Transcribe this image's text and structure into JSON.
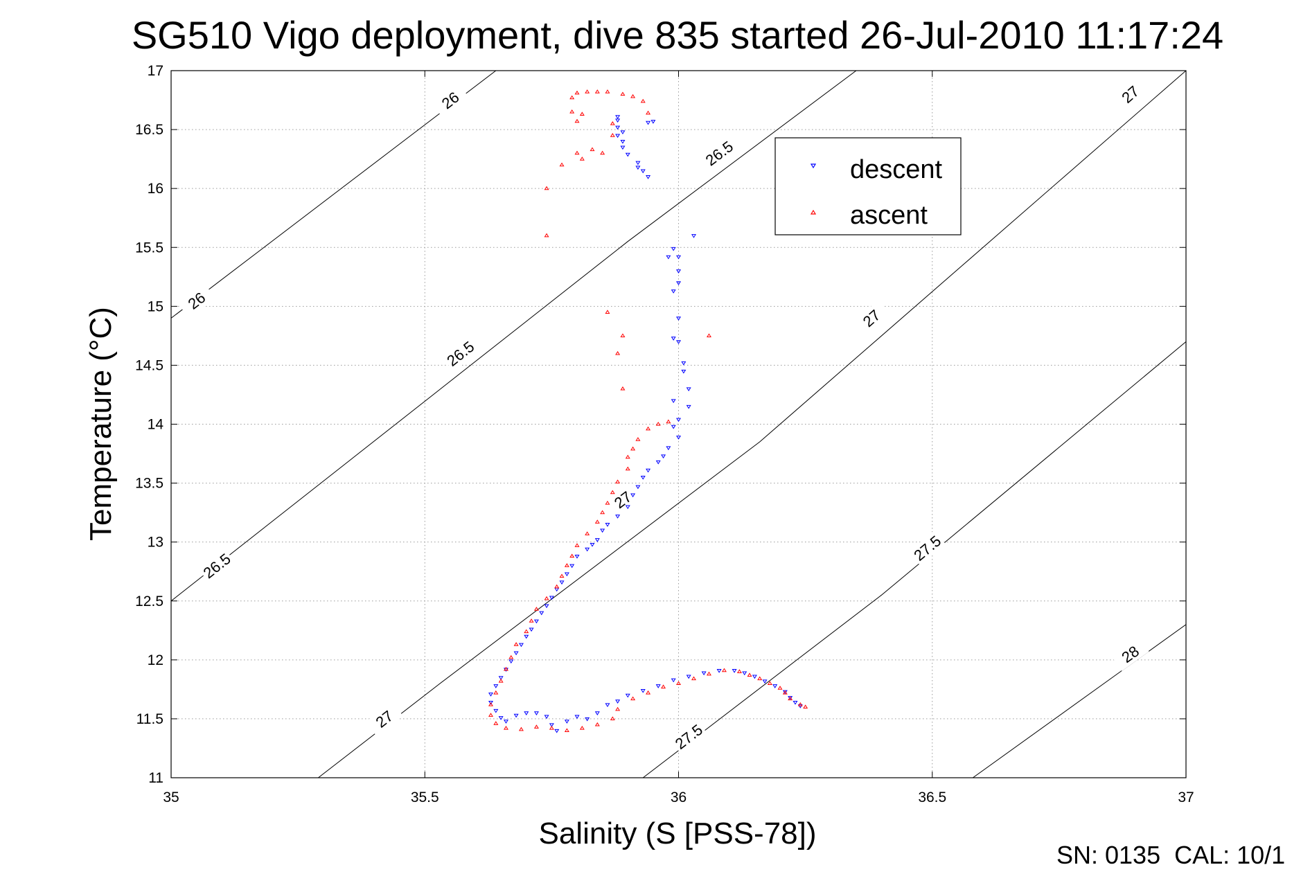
{
  "chart_data": {
    "type": "scatter",
    "title": "SG510 Vigo deployment, dive 835 started 26-Jul-2010 11:17:24",
    "xlabel": "Salinity (S [PSS-78])",
    "ylabel": "Temperature (°C)",
    "xlim": [
      35,
      37
    ],
    "ylim": [
      11,
      17
    ],
    "xticks": [
      35,
      35.5,
      36,
      36.5,
      37
    ],
    "xtick_labels": [
      "35",
      "35.5",
      "36",
      "36.5",
      "37"
    ],
    "yticks": [
      11,
      11.5,
      12,
      12.5,
      13,
      13.5,
      14,
      14.5,
      15,
      15.5,
      16,
      16.5,
      17
    ],
    "ytick_labels": [
      "11",
      "11.5",
      "12",
      "12.5",
      "13",
      "13.5",
      "14",
      "14.5",
      "15",
      "15.5",
      "16",
      "16.5",
      "17"
    ],
    "grid": true,
    "legend_position": "top-right",
    "footer": "SN: 0135  CAL: 10/1",
    "isopycnals": [
      {
        "points": [
          [
            35,
            14.9
          ],
          [
            35.64,
            17
          ]
        ],
        "labels": [
          {
            "text": "26",
            "s": 35.05,
            "t": 15.05
          },
          {
            "text": "26",
            "s": 35.55,
            "t": 16.75
          }
        ]
      },
      {
        "points": [
          [
            35,
            12.5
          ],
          [
            35.9,
            15.55
          ],
          [
            36.35,
            17
          ]
        ],
        "labels": [
          {
            "text": "26.5",
            "s": 35.09,
            "t": 12.8
          },
          {
            "text": "26.5",
            "s": 35.57,
            "t": 14.6
          },
          {
            "text": "26.5",
            "s": 36.08,
            "t": 16.3
          }
        ]
      },
      {
        "points": [
          [
            35.29,
            11
          ],
          [
            35.53,
            11.8
          ],
          [
            36.16,
            13.85
          ],
          [
            37,
            17
          ]
        ],
        "labels": [
          {
            "text": "27",
            "s": 35.42,
            "t": 11.5
          },
          {
            "text": "27",
            "s": 35.89,
            "t": 13.36
          },
          {
            "text": "27",
            "s": 36.38,
            "t": 14.9
          },
          {
            "text": "27",
            "s": 36.89,
            "t": 16.8
          }
        ]
      },
      {
        "points": [
          [
            35.93,
            11
          ],
          [
            36.4,
            12.55
          ],
          [
            37,
            14.7
          ]
        ],
        "labels": [
          {
            "text": "27.5",
            "s": 36.02,
            "t": 11.35
          },
          {
            "text": "27.5",
            "s": 36.49,
            "t": 12.95
          }
        ]
      },
      {
        "points": [
          [
            36.58,
            11
          ],
          [
            37,
            12.3
          ]
        ],
        "labels": [
          {
            "text": "28",
            "s": 36.89,
            "t": 12.05
          }
        ]
      }
    ],
    "series": [
      {
        "name": "descent",
        "color": "#0000ff",
        "marker": "triangle-down",
        "points": [
          [
            35.88,
            16.61
          ],
          [
            35.88,
            16.58
          ],
          [
            35.95,
            16.57
          ],
          [
            35.94,
            16.56
          ],
          [
            35.88,
            16.52
          ],
          [
            35.89,
            16.48
          ],
          [
            35.88,
            16.45
          ],
          [
            35.89,
            16.4
          ],
          [
            35.89,
            16.35
          ],
          [
            35.9,
            16.29
          ],
          [
            35.92,
            16.22
          ],
          [
            35.92,
            16.18
          ],
          [
            35.93,
            16.15
          ],
          [
            35.94,
            16.1
          ],
          [
            36.03,
            15.6
          ],
          [
            35.99,
            15.49
          ],
          [
            35.98,
            15.42
          ],
          [
            36.0,
            15.42
          ],
          [
            36.0,
            15.3
          ],
          [
            36.0,
            15.2
          ],
          [
            35.99,
            15.13
          ],
          [
            36.0,
            14.9
          ],
          [
            35.99,
            14.73
          ],
          [
            36.0,
            14.7
          ],
          [
            36.01,
            14.52
          ],
          [
            36.01,
            14.45
          ],
          [
            36.02,
            14.3
          ],
          [
            35.99,
            14.2
          ],
          [
            36.02,
            14.15
          ],
          [
            36.0,
            14.04
          ],
          [
            35.99,
            13.98
          ],
          [
            36.0,
            13.89
          ],
          [
            35.98,
            13.8
          ],
          [
            35.97,
            13.73
          ],
          [
            35.96,
            13.68
          ],
          [
            35.94,
            13.61
          ],
          [
            35.93,
            13.55
          ],
          [
            35.92,
            13.47
          ],
          [
            35.91,
            13.4
          ],
          [
            35.9,
            13.3
          ],
          [
            35.88,
            13.22
          ],
          [
            35.86,
            13.15
          ],
          [
            35.85,
            13.1
          ],
          [
            35.84,
            13.02
          ],
          [
            35.83,
            12.98
          ],
          [
            35.82,
            12.94
          ],
          [
            35.8,
            12.88
          ],
          [
            35.79,
            12.8
          ],
          [
            35.78,
            12.73
          ],
          [
            35.77,
            12.66
          ],
          [
            35.76,
            12.6
          ],
          [
            35.75,
            12.53
          ],
          [
            35.74,
            12.46
          ],
          [
            35.73,
            12.4
          ],
          [
            35.72,
            12.33
          ],
          [
            35.71,
            12.26
          ],
          [
            35.7,
            12.2
          ],
          [
            35.69,
            12.13
          ],
          [
            35.68,
            12.06
          ],
          [
            35.67,
            11.99
          ],
          [
            35.66,
            11.92
          ],
          [
            35.65,
            11.85
          ],
          [
            35.64,
            11.78
          ],
          [
            35.63,
            11.71
          ],
          [
            35.63,
            11.64
          ],
          [
            35.64,
            11.57
          ],
          [
            35.65,
            11.51
          ],
          [
            35.66,
            11.48
          ],
          [
            35.68,
            11.53
          ],
          [
            35.7,
            11.55
          ],
          [
            35.72,
            11.55
          ],
          [
            35.74,
            11.52
          ],
          [
            35.75,
            11.45
          ],
          [
            35.76,
            11.4
          ],
          [
            35.78,
            11.48
          ],
          [
            35.8,
            11.52
          ],
          [
            35.82,
            11.5
          ],
          [
            35.84,
            11.55
          ],
          [
            35.86,
            11.62
          ],
          [
            35.88,
            11.65
          ],
          [
            35.9,
            11.7
          ],
          [
            35.93,
            11.74
          ],
          [
            35.96,
            11.78
          ],
          [
            35.99,
            11.83
          ],
          [
            36.02,
            11.86
          ],
          [
            36.05,
            11.89
          ],
          [
            36.08,
            11.91
          ],
          [
            36.11,
            11.91
          ],
          [
            36.13,
            11.89
          ],
          [
            36.15,
            11.86
          ],
          [
            36.17,
            11.82
          ],
          [
            36.19,
            11.78
          ],
          [
            36.21,
            11.73
          ],
          [
            36.22,
            11.68
          ],
          [
            36.23,
            11.64
          ],
          [
            36.24,
            11.61
          ]
        ]
      },
      {
        "name": "ascent",
        "color": "#ff0000",
        "marker": "triangle-up",
        "points": [
          [
            35.8,
            16.81
          ],
          [
            35.82,
            16.82
          ],
          [
            35.84,
            16.82
          ],
          [
            35.86,
            16.82
          ],
          [
            35.79,
            16.77
          ],
          [
            35.89,
            16.8
          ],
          [
            35.91,
            16.78
          ],
          [
            35.93,
            16.74
          ],
          [
            35.94,
            16.64
          ],
          [
            35.79,
            16.65
          ],
          [
            35.81,
            16.63
          ],
          [
            35.8,
            16.57
          ],
          [
            35.87,
            16.55
          ],
          [
            35.87,
            16.45
          ],
          [
            35.83,
            16.33
          ],
          [
            35.8,
            16.3
          ],
          [
            35.85,
            16.3
          ],
          [
            35.81,
            16.25
          ],
          [
            35.77,
            16.2
          ],
          [
            35.74,
            16.0
          ],
          [
            35.74,
            15.6
          ],
          [
            35.86,
            14.95
          ],
          [
            35.89,
            14.75
          ],
          [
            35.88,
            14.6
          ],
          [
            35.89,
            14.3
          ],
          [
            36.06,
            14.75
          ],
          [
            35.98,
            14.02
          ],
          [
            35.96,
            14.0
          ],
          [
            35.94,
            13.96
          ],
          [
            35.92,
            13.87
          ],
          [
            35.91,
            13.79
          ],
          [
            35.9,
            13.72
          ],
          [
            35.9,
            13.62
          ],
          [
            35.88,
            13.51
          ],
          [
            35.87,
            13.42
          ],
          [
            35.86,
            13.33
          ],
          [
            35.85,
            13.25
          ],
          [
            35.84,
            13.17
          ],
          [
            35.82,
            13.07
          ],
          [
            35.8,
            12.97
          ],
          [
            35.79,
            12.88
          ],
          [
            35.78,
            12.8
          ],
          [
            35.77,
            12.71
          ],
          [
            35.76,
            12.62
          ],
          [
            35.74,
            12.52
          ],
          [
            35.72,
            12.43
          ],
          [
            35.71,
            12.33
          ],
          [
            35.7,
            12.24
          ],
          [
            35.68,
            12.13
          ],
          [
            35.67,
            12.02
          ],
          [
            35.66,
            11.92
          ],
          [
            35.65,
            11.82
          ],
          [
            35.64,
            11.72
          ],
          [
            35.63,
            11.62
          ],
          [
            35.63,
            11.53
          ],
          [
            35.64,
            11.46
          ],
          [
            35.66,
            11.42
          ],
          [
            35.69,
            11.41
          ],
          [
            35.72,
            11.43
          ],
          [
            35.75,
            11.42
          ],
          [
            35.78,
            11.4
          ],
          [
            35.81,
            11.42
          ],
          [
            35.84,
            11.45
          ],
          [
            35.87,
            11.5
          ],
          [
            35.88,
            11.58
          ],
          [
            35.91,
            11.67
          ],
          [
            35.94,
            11.72
          ],
          [
            35.97,
            11.77
          ],
          [
            36.0,
            11.8
          ],
          [
            36.03,
            11.84
          ],
          [
            36.06,
            11.88
          ],
          [
            36.09,
            11.91
          ],
          [
            36.12,
            11.9
          ],
          [
            36.14,
            11.87
          ],
          [
            36.16,
            11.84
          ],
          [
            36.18,
            11.8
          ],
          [
            36.2,
            11.76
          ],
          [
            36.21,
            11.72
          ],
          [
            36.22,
            11.67
          ],
          [
            36.24,
            11.62
          ],
          [
            36.25,
            11.6
          ]
        ]
      }
    ]
  }
}
